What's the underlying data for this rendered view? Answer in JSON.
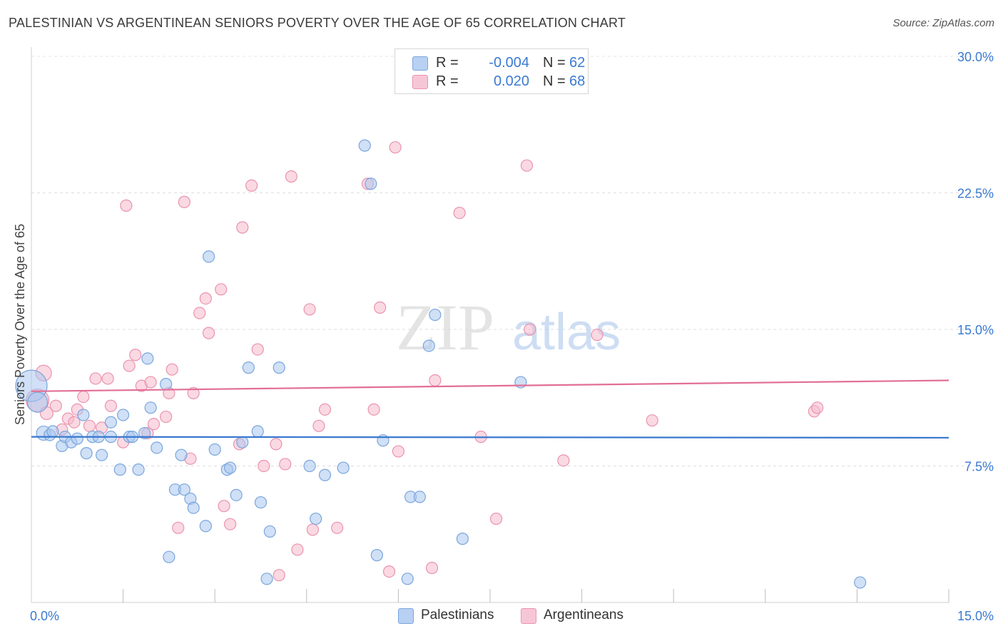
{
  "header": {
    "title": "PALESTINIAN VS ARGENTINEAN SENIORS POVERTY OVER THE AGE OF 65 CORRELATION CHART",
    "source": "Source: ZipAtlas.com"
  },
  "watermark": {
    "part1": "ZIP",
    "part2": "atlas"
  },
  "legend": {
    "rows": [
      {
        "r_label": "R =",
        "r_value": "-0.004",
        "n_label": "N =",
        "n_value": "62"
      },
      {
        "r_label": "R =",
        "r_value": "0.020",
        "n_label": "N =",
        "n_value": "68"
      }
    ],
    "bottom": [
      "Palestinians",
      "Argentineans"
    ]
  },
  "colors": {
    "blue_fill": "#a9c7ee",
    "blue_stroke": "#7aa6dd",
    "blue_line": "#3a78cf",
    "pink_fill": "#f5b9cc",
    "pink_stroke": "#ea93ae",
    "pink_line": "#e26e96",
    "tick_text": "#3b7ad1"
  },
  "chart_data": {
    "type": "scatter",
    "title": "PALESTINIAN VS ARGENTINEAN SENIORS POVERTY OVER THE AGE OF 65 CORRELATION CHART",
    "ylabel": "Seniors Poverty Over the Age of 65",
    "xlabel": "",
    "xlim": [
      0,
      15
    ],
    "ylim": [
      0,
      30
    ],
    "x_tick_labels": [
      "0.0%",
      "15.0%"
    ],
    "y_ticks": [
      7.5,
      15,
      22.5,
      30
    ],
    "y_tick_labels": [
      "7.5%",
      "15.0%",
      "22.5%",
      "30.0%"
    ],
    "grid": true,
    "legend_position": "top-center",
    "series": [
      {
        "name": "Palestinians",
        "r": -0.004,
        "n": 62,
        "trend": [
          [
            0,
            9.1
          ],
          [
            15,
            9.05
          ]
        ],
        "points": [
          [
            0.0,
            11.9,
            22
          ],
          [
            0.1,
            11.0,
            14
          ],
          [
            0.2,
            9.3,
            10
          ],
          [
            0.3,
            9.2,
            8
          ],
          [
            0.35,
            9.4,
            8
          ],
          [
            0.5,
            8.6,
            8
          ],
          [
            0.55,
            9.1,
            8
          ],
          [
            0.65,
            8.8,
            8
          ],
          [
            0.75,
            9.0,
            8
          ],
          [
            0.85,
            10.3,
            8
          ],
          [
            0.9,
            8.2,
            8
          ],
          [
            1.0,
            9.1,
            8
          ],
          [
            1.1,
            9.1,
            8
          ],
          [
            1.15,
            8.1,
            8
          ],
          [
            1.3,
            9.1,
            8
          ],
          [
            1.3,
            9.9,
            8
          ],
          [
            1.45,
            7.3,
            8
          ],
          [
            1.5,
            10.3,
            8
          ],
          [
            1.6,
            9.1,
            8
          ],
          [
            1.65,
            9.1,
            8
          ],
          [
            1.75,
            7.3,
            8
          ],
          [
            1.85,
            9.3,
            8
          ],
          [
            1.9,
            13.4,
            8
          ],
          [
            1.95,
            10.7,
            8
          ],
          [
            2.05,
            8.5,
            8
          ],
          [
            2.2,
            12.0,
            8
          ],
          [
            2.25,
            2.5,
            8
          ],
          [
            2.35,
            6.2,
            8
          ],
          [
            2.45,
            8.1,
            8
          ],
          [
            2.5,
            6.2,
            8
          ],
          [
            2.6,
            5.7,
            8
          ],
          [
            2.65,
            5.2,
            8
          ],
          [
            2.85,
            4.2,
            8
          ],
          [
            2.9,
            19.0,
            8
          ],
          [
            3.0,
            8.4,
            8
          ],
          [
            3.2,
            7.3,
            8
          ],
          [
            3.25,
            7.4,
            8
          ],
          [
            3.35,
            5.9,
            8
          ],
          [
            3.45,
            8.8,
            8
          ],
          [
            3.55,
            12.9,
            8
          ],
          [
            3.7,
            9.4,
            8
          ],
          [
            3.75,
            5.5,
            8
          ],
          [
            3.85,
            1.3,
            8
          ],
          [
            3.9,
            3.9,
            8
          ],
          [
            4.05,
            12.9,
            8
          ],
          [
            4.55,
            7.5,
            8
          ],
          [
            4.65,
            4.6,
            8
          ],
          [
            4.8,
            7.0,
            8
          ],
          [
            5.1,
            7.4,
            8
          ],
          [
            5.45,
            25.1,
            8
          ],
          [
            5.55,
            23.0,
            8
          ],
          [
            5.65,
            2.6,
            8
          ],
          [
            5.75,
            8.9,
            8
          ],
          [
            6.15,
            1.3,
            8
          ],
          [
            6.2,
            5.8,
            8
          ],
          [
            6.35,
            5.8,
            8
          ],
          [
            6.5,
            14.1,
            8
          ],
          [
            6.6,
            15.8,
            8
          ],
          [
            7.0,
            29.4,
            8
          ],
          [
            7.05,
            3.5,
            8
          ],
          [
            8.0,
            12.1,
            8
          ],
          [
            13.55,
            1.1,
            8
          ]
        ]
      },
      {
        "name": "Argentineans",
        "r": 0.02,
        "n": 68,
        "trend": [
          [
            0,
            11.6
          ],
          [
            15,
            12.2
          ]
        ],
        "points": [
          [
            0.1,
            11.1,
            16
          ],
          [
            0.2,
            12.6,
            11
          ],
          [
            0.25,
            10.4,
            9
          ],
          [
            0.4,
            10.8,
            8
          ],
          [
            0.5,
            9.5,
            8
          ],
          [
            0.6,
            10.1,
            8
          ],
          [
            0.7,
            9.9,
            8
          ],
          [
            0.75,
            10.6,
            8
          ],
          [
            0.85,
            11.3,
            8
          ],
          [
            0.95,
            9.7,
            8
          ],
          [
            1.05,
            12.3,
            8
          ],
          [
            1.15,
            9.6,
            8
          ],
          [
            1.25,
            12.3,
            8
          ],
          [
            1.3,
            10.8,
            8
          ],
          [
            1.5,
            8.8,
            8
          ],
          [
            1.55,
            21.8,
            8
          ],
          [
            1.6,
            13.0,
            8
          ],
          [
            1.7,
            13.6,
            8
          ],
          [
            1.8,
            11.9,
            8
          ],
          [
            1.9,
            9.3,
            8
          ],
          [
            1.95,
            12.1,
            8
          ],
          [
            2.0,
            9.8,
            8
          ],
          [
            2.2,
            10.2,
            8
          ],
          [
            2.25,
            11.5,
            8
          ],
          [
            2.3,
            12.8,
            8
          ],
          [
            2.4,
            4.1,
            8
          ],
          [
            2.5,
            22.0,
            8
          ],
          [
            2.6,
            7.9,
            8
          ],
          [
            2.65,
            11.5,
            8
          ],
          [
            2.75,
            15.9,
            8
          ],
          [
            2.85,
            16.7,
            8
          ],
          [
            2.9,
            14.8,
            8
          ],
          [
            3.1,
            17.2,
            8
          ],
          [
            3.15,
            5.3,
            8
          ],
          [
            3.25,
            4.3,
            8
          ],
          [
            3.4,
            8.7,
            8
          ],
          [
            3.45,
            20.6,
            8
          ],
          [
            3.6,
            22.9,
            8
          ],
          [
            3.7,
            13.9,
            8
          ],
          [
            3.8,
            7.5,
            8
          ],
          [
            4.0,
            8.7,
            8
          ],
          [
            4.05,
            1.5,
            8
          ],
          [
            4.15,
            7.6,
            8
          ],
          [
            4.25,
            23.4,
            8
          ],
          [
            4.35,
            2.9,
            8
          ],
          [
            4.55,
            16.1,
            8
          ],
          [
            4.6,
            4.0,
            8
          ],
          [
            4.7,
            9.7,
            8
          ],
          [
            4.8,
            10.6,
            8
          ],
          [
            5.0,
            4.1,
            8
          ],
          [
            5.5,
            23.0,
            8
          ],
          [
            5.6,
            10.6,
            8
          ],
          [
            5.7,
            16.2,
            8
          ],
          [
            5.85,
            1.7,
            8
          ],
          [
            5.95,
            25.0,
            8
          ],
          [
            6.0,
            8.3,
            8
          ],
          [
            6.55,
            1.9,
            8
          ],
          [
            6.6,
            12.2,
            8
          ],
          [
            7.0,
            21.4,
            8
          ],
          [
            7.35,
            9.1,
            8
          ],
          [
            7.6,
            4.6,
            8
          ],
          [
            8.1,
            24.0,
            8
          ],
          [
            8.15,
            15.0,
            8
          ],
          [
            8.7,
            7.8,
            8
          ],
          [
            9.25,
            14.7,
            8
          ],
          [
            10.15,
            10.0,
            8
          ],
          [
            12.8,
            10.5,
            8
          ],
          [
            12.85,
            10.7,
            8
          ]
        ]
      }
    ]
  }
}
